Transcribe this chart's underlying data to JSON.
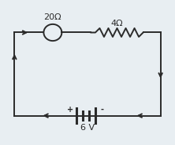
{
  "bg_color": "#e8eef2",
  "wire_color": "#2a2a2a",
  "label_20": "20Ω",
  "label_4": "4Ω",
  "label_6v": "6 V",
  "label_plus": "+",
  "label_minus": "-",
  "fig_width": 2.22,
  "fig_height": 1.85,
  "dpi": 100
}
